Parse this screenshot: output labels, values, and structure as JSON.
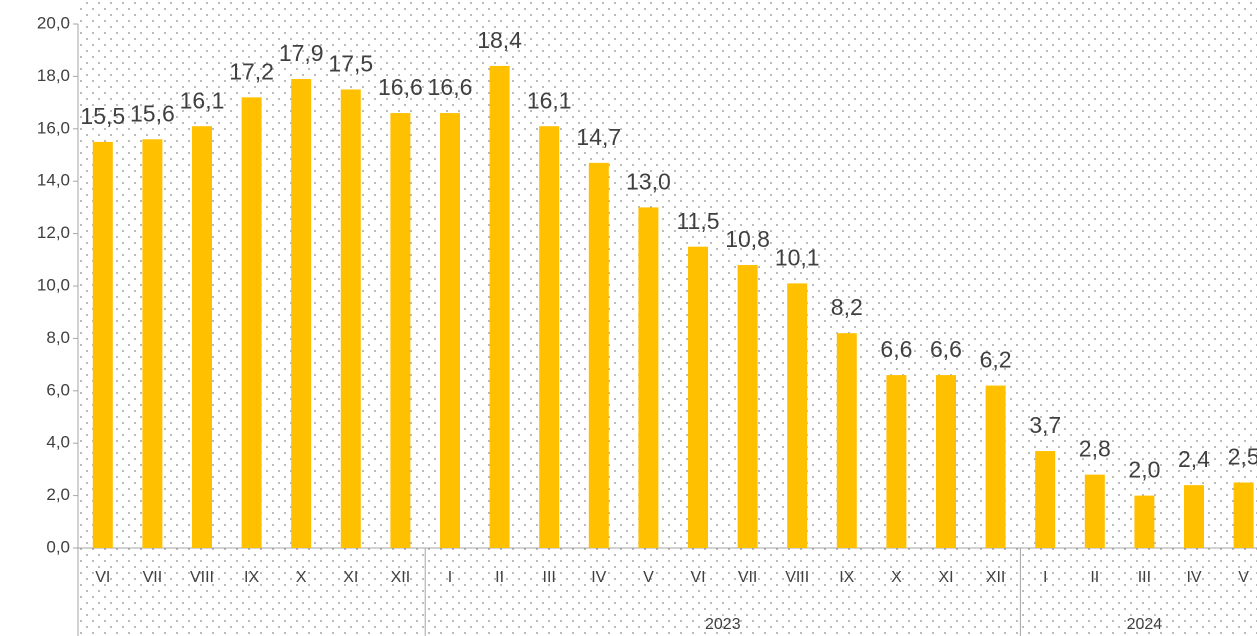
{
  "chart_data": {
    "type": "bar",
    "groups": [
      {
        "label": null,
        "categories": [
          "VI",
          "VII",
          "VIII",
          "IX",
          "X",
          "XI",
          "XII"
        ]
      },
      {
        "label": "2023",
        "categories": [
          "I",
          "II",
          "III",
          "IV",
          "V",
          "VI",
          "VII",
          "VIII",
          "IX",
          "X",
          "XI",
          "XII"
        ]
      },
      {
        "label": "2024",
        "categories": [
          "I",
          "II",
          "III",
          "IV",
          "V"
        ]
      }
    ],
    "values": [
      15.5,
      15.6,
      16.1,
      17.2,
      17.9,
      17.5,
      16.6,
      16.6,
      18.4,
      16.1,
      14.7,
      13.0,
      11.5,
      10.8,
      10.1,
      8.2,
      6.6,
      6.6,
      6.2,
      3.7,
      2.8,
      2.0,
      2.4,
      2.5
    ],
    "value_labels": [
      "15,5",
      "15,6",
      "16,1",
      "17,2",
      "17,9",
      "17,5",
      "16,6",
      "16,6",
      "18,4",
      "16,1",
      "14,7",
      "13,0",
      "11,5",
      "10,8",
      "10,1",
      "8,2",
      "6,6",
      "6,6",
      "6,2",
      "3,7",
      "2,8",
      "2,0",
      "2,4",
      "2,5"
    ],
    "color": "#ffc000",
    "ylim": [
      0,
      20
    ],
    "yticks": [
      {
        "value": 0,
        "label": "0,0"
      },
      {
        "value": 2,
        "label": "2,0"
      },
      {
        "value": 4,
        "label": "4,0"
      },
      {
        "value": 6,
        "label": "6,0"
      },
      {
        "value": 8,
        "label": "8,0"
      },
      {
        "value": 10,
        "label": "10,0"
      },
      {
        "value": 12,
        "label": "12,0"
      },
      {
        "value": 14,
        "label": "14,0"
      },
      {
        "value": 16,
        "label": "16,0"
      },
      {
        "value": 18,
        "label": "18,0"
      },
      {
        "value": 20,
        "label": "20,0"
      }
    ]
  }
}
